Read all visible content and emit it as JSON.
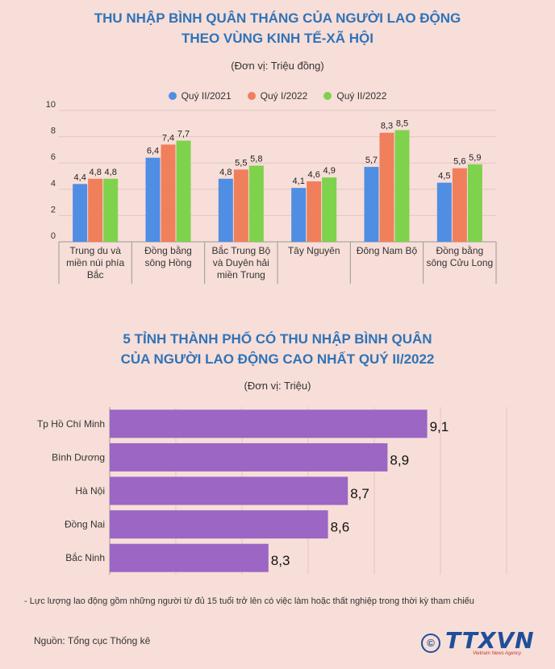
{
  "chart1": {
    "title_line1": "THU NHẬP BÌNH QUÂN THÁNG CỦA NGƯỜI LAO ĐỘNG",
    "title_line2": "THEO VÙNG KINH TẾ-XÃ HỘI",
    "unit": "(Đơn vị: Triệu đồng)",
    "legend": [
      {
        "name": "Quý II/2021",
        "color": "#4f8ee3"
      },
      {
        "name": "Quý I/2022",
        "color": "#f07f5c"
      },
      {
        "name": "Quý II/2022",
        "color": "#7fd24c"
      }
    ]
  },
  "chart2": {
    "title_line1": "5 TỈNH THÀNH PHỐ CÓ THU NHẬP BÌNH QUÂN",
    "title_line2": "CỦA NGƯỜI LAO ĐỘNG CAO NHẤT QUÝ II/2022",
    "unit": "(Đơn vị: Triệu)"
  },
  "chart_data": [
    {
      "type": "bar",
      "title": "THU NHẬP BÌNH QUÂN THÁNG CỦA NGƯỜI LAO ĐỘNG THEO VÙNG KINH TẾ-XÃ HỘI",
      "subtitle": "(Đơn vị: Triệu đồng)",
      "categories": [
        [
          "Trung du và",
          "miền núi phía",
          "Bắc"
        ],
        [
          "Đồng bằng",
          "sông Hồng"
        ],
        [
          "Bắc Trung Bộ",
          "và Duyên hải",
          "miền Trung"
        ],
        [
          "Tây Nguyên"
        ],
        [
          "Đông Nam Bộ"
        ],
        [
          "Đồng bằng",
          "sông Cửu Long"
        ]
      ],
      "series": [
        {
          "name": "Quý II/2021",
          "color": "#4f8ee3",
          "values": [
            4.4,
            6.4,
            4.8,
            4.1,
            5.7,
            4.5
          ],
          "labels": [
            "4,4",
            "6,4",
            "4,8",
            "4,1",
            "5,7",
            "4,5"
          ]
        },
        {
          "name": "Quý I/2022",
          "color": "#f07f5c",
          "values": [
            4.8,
            7.4,
            5.5,
            4.6,
            8.3,
            5.6
          ],
          "labels": [
            "4,8",
            "7,4",
            "5,5",
            "4,6",
            "8,3",
            "5,6"
          ]
        },
        {
          "name": "Quý II/2022",
          "color": "#7fd24c",
          "values": [
            4.8,
            7.7,
            5.8,
            4.9,
            8.5,
            5.9
          ],
          "labels": [
            "4,8",
            "7,7",
            "5,8",
            "4,9",
            "8,5",
            "5,9"
          ]
        }
      ],
      "yticks": [
        "0",
        "2",
        "4",
        "6",
        "8",
        "10"
      ],
      "ylim": [
        0,
        10
      ],
      "legend_position": "top-center",
      "grid": true
    },
    {
      "type": "bar",
      "orientation": "horizontal",
      "title": "5 TỈNH THÀNH PHỐ CÓ THU NHẬP BÌNH QUÂN CỦA NGƯỜI LAO ĐỘNG CAO NHẤT QUÝ II/2022",
      "subtitle": "(Đơn vị: Triệu)",
      "categories": [
        "Tp Hồ Chí Minh",
        "Bình Dương",
        "Hà Nội",
        "Đồng Nai",
        "Bắc Ninh"
      ],
      "values": [
        9.1,
        8.9,
        8.7,
        8.6,
        8.3
      ],
      "labels": [
        "9,1",
        "8,9",
        "8,7",
        "8,6",
        "8,3"
      ],
      "color": "#9b66c4",
      "xlim": [
        7.5,
        9.5
      ],
      "grid": true
    }
  ],
  "footer": {
    "note": "- Lực lượng lao động gồm những người từ đủ 15 tuổi trở lên có việc làm hoặc thất nghiệp trong thời kỳ tham chiếu",
    "source": "Nguồn: Tổng cục Thống kê",
    "logo_mark": "©",
    "logo_text": "TTXVN",
    "logo_sub": "Vietnam News Agency"
  }
}
